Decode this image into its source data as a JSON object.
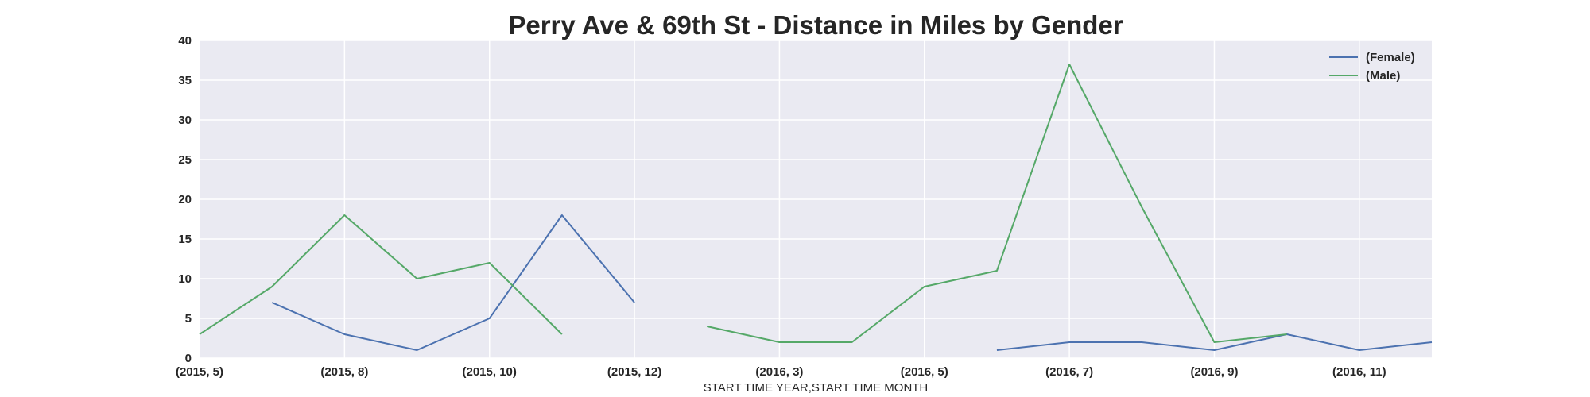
{
  "chart_data": {
    "type": "line",
    "title": "Perry Ave & 69th St - Distance in Miles by Gender",
    "xlabel": "START TIME YEAR,START TIME MONTH",
    "ylabel": "",
    "ylim": [
      0,
      40
    ],
    "yticks": [
      "0",
      "5",
      "10",
      "15",
      "20",
      "25",
      "30",
      "35",
      "40"
    ],
    "categories": [
      "(2015, 5)",
      "(2015, 6)",
      "(2015, 8)",
      "(2015, 9)",
      "(2015, 10)",
      "(2015, 11)",
      "(2015, 12)",
      "(2016, 2)",
      "(2016, 3)",
      "(2016, 4)",
      "(2016, 5)",
      "(2016, 6)",
      "(2016, 7)",
      "(2016, 8)",
      "(2016, 9)",
      "(2016, 10)",
      "(2016, 11)",
      "(2016, 12)"
    ],
    "xtick_labels": [
      "(2015, 5)",
      "(2015, 8)",
      "(2015, 10)",
      "(2015, 12)",
      "(2016, 3)",
      "(2016, 5)",
      "(2016, 7)",
      "(2016, 9)",
      "(2016, 11)"
    ],
    "grid": true,
    "legend_position": "top-right",
    "series": [
      {
        "name": "(Female)",
        "color": "#4c72b0",
        "values": [
          null,
          7,
          3,
          1,
          5,
          18,
          7,
          null,
          null,
          null,
          null,
          1,
          2,
          2,
          1,
          3,
          1,
          2
        ]
      },
      {
        "name": "(Male)",
        "color": "#55a868",
        "values": [
          3,
          9,
          18,
          10,
          12,
          3,
          null,
          4,
          2,
          2,
          9,
          11,
          37,
          19,
          2,
          3,
          null,
          null
        ]
      }
    ]
  }
}
